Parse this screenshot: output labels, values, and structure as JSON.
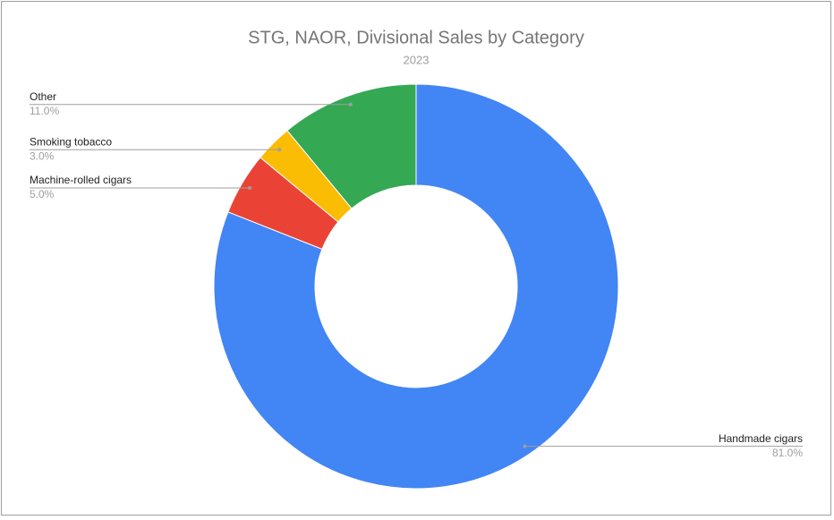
{
  "chart_data": {
    "type": "donut",
    "title": "STG, NAOR, Divisional Sales by Category",
    "subtitle": "2023",
    "categories": [
      "Handmade cigars",
      "Machine-rolled cigars",
      "Smoking tobacco",
      "Other"
    ],
    "values": [
      81,
      5,
      3,
      11
    ],
    "value_labels": [
      "81.0%",
      "5.0%",
      "3.0%",
      "11.0%"
    ],
    "colors": [
      "#4285f4",
      "#ea4335",
      "#fbbc04",
      "#34a853"
    ]
  }
}
